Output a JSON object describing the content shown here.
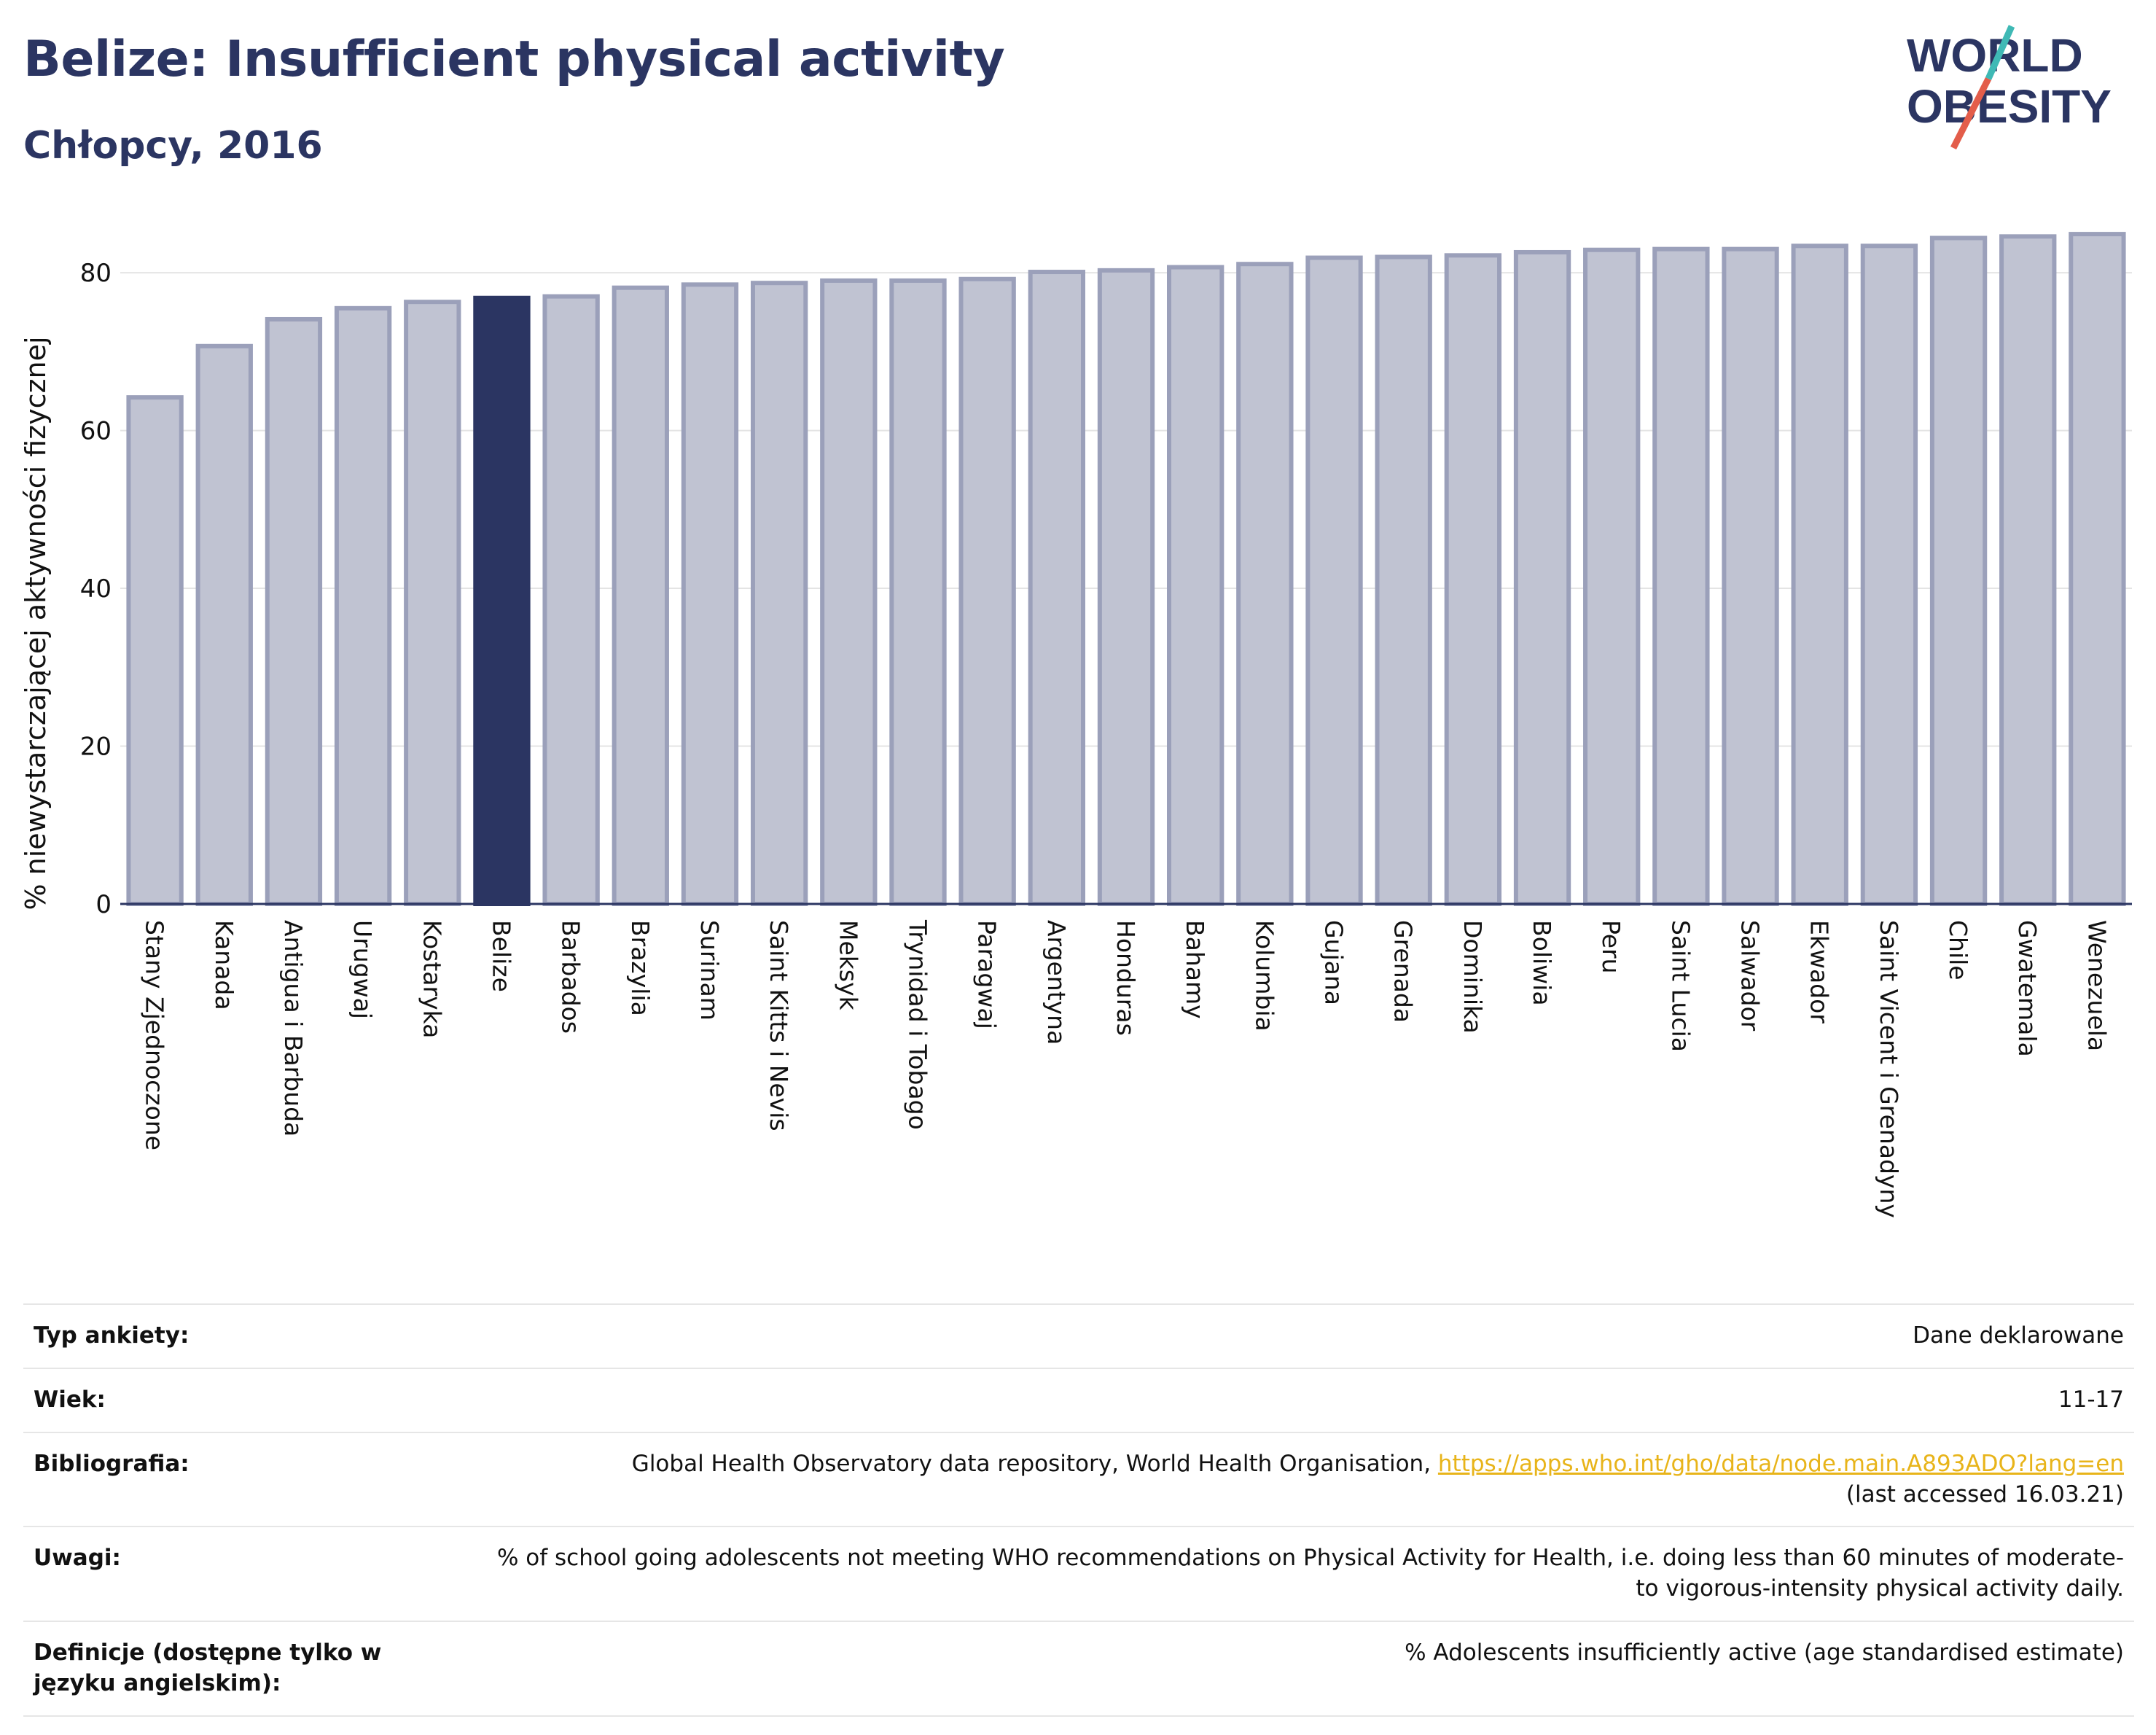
{
  "header": {
    "title": "Belize: Insufficient physical activity",
    "subtitle": "Chłopcy, 2016"
  },
  "logo": {
    "line1": "WORLD",
    "line2": "OBESITY",
    "accent_color": "#e35d4a",
    "accent_color2": "#3fb9b5"
  },
  "colors": {
    "bar_default": "#c0c3d2",
    "bar_default_stroke": "#9ba0ba",
    "bar_highlight": "#2b3562",
    "axis": "#2b3562"
  },
  "chart_data": {
    "type": "bar",
    "title": "Belize: Insufficient physical activity",
    "subtitle": "Chłopcy, 2016",
    "ylabel": "% niewystarczającej aktywności fizycznej",
    "xlabel": "",
    "ylim": [
      0,
      85
    ],
    "yticks": [
      0,
      20,
      40,
      60,
      80
    ],
    "grid": true,
    "highlight": "Belize",
    "categories": [
      "Stany Zjednoczone",
      "Kanada",
      "Antigua i Barbuda",
      "Urugwaj",
      "Kostaryka",
      "Belize",
      "Barbados",
      "Brazylia",
      "Surinam",
      "Saint Kitts i Nevis",
      "Meksyk",
      "Trynidad i Tobago",
      "Paragwaj",
      "Argentyna",
      "Honduras",
      "Bahamy",
      "Kolumbia",
      "Gujana",
      "Grenada",
      "Dominika",
      "Boliwia",
      "Peru",
      "Saint Lucia",
      "Salwador",
      "Ekwador",
      "Saint Vicent i Grenadyny",
      "Chile",
      "Gwatemala",
      "Wenezuela"
    ],
    "values": [
      64.2,
      70.7,
      74.1,
      75.5,
      76.3,
      76.8,
      77.0,
      78.1,
      78.5,
      78.7,
      79.0,
      79.0,
      79.2,
      80.1,
      80.3,
      80.7,
      81.1,
      81.9,
      82.0,
      82.2,
      82.6,
      82.9,
      83.0,
      83.0,
      83.4,
      83.4,
      84.4,
      84.6,
      84.9
    ]
  },
  "info": {
    "rows": [
      {
        "label": "Typ ankiety:",
        "value": "Dane deklarowane"
      },
      {
        "label": "Wiek:",
        "value": "11-17"
      },
      {
        "label": "Bibliografia:",
        "value": "Global Health Observatory data repository, World Health Organisation, ",
        "link": "https://apps.who.int/gho/data/node.main.A893ADO?lang=en",
        "value2": "(last accessed 16.03.21)"
      },
      {
        "label": "Uwagi:",
        "value": "% of school going adolescents not meeting WHO recommendations on Physical Activity for Health, i.e. doing less than 60 minutes of moderate- to vigorous-intensity physical activity daily."
      },
      {
        "label": "Definicje (dostępne tylko w języku angielskim):",
        "value": "% Adolescents insufficiently active (age standardised estimate)"
      }
    ]
  }
}
